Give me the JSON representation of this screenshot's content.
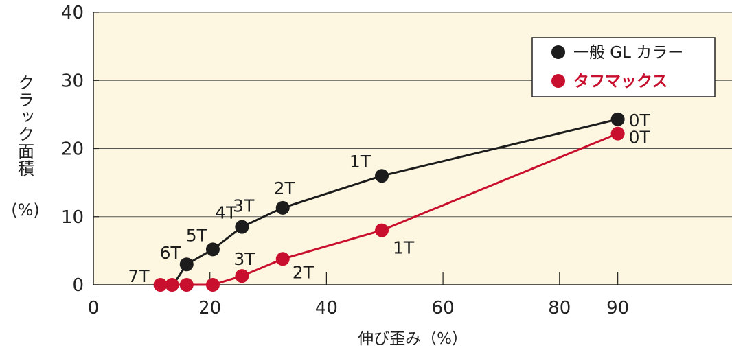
{
  "chart_data": {
    "type": "line",
    "xlabel": "伸び歪み（%）",
    "ylabel": "クラック面積",
    "ylabel_unit": "(%)",
    "xlim": [
      0,
      95
    ],
    "ylim": [
      0,
      40
    ],
    "xticks": [
      0,
      20,
      40,
      60,
      80,
      90
    ],
    "yticks": [
      0,
      10,
      20,
      30,
      40
    ],
    "grid": "horizontal",
    "plot_background": "#fdf7e1",
    "legend_position": "top-right",
    "series": [
      {
        "name": "一般 GL カラー",
        "color": "#1c1c1c",
        "points": [
          {
            "x": 13.7,
            "y": 0,
            "label": ""
          },
          {
            "x": 16.0,
            "y": 3.0,
            "label": "6T"
          },
          {
            "x": 20.5,
            "y": 5.2,
            "label": "5T"
          },
          {
            "x": 25.5,
            "y": 8.5,
            "label": "4T"
          },
          {
            "x": 32.5,
            "y": 11.3,
            "label": "3T"
          },
          {
            "x": 49.5,
            "y": 16.0,
            "label": "2T"
          },
          {
            "x": 90.0,
            "y": 24.3,
            "label": "1T"
          }
        ],
        "end_label": "0T"
      },
      {
        "name": "タフマックス",
        "color": "#c8102e",
        "points": [
          {
            "x": 11.5,
            "y": 0,
            "label": "7T"
          },
          {
            "x": 13.5,
            "y": 0,
            "label": ""
          },
          {
            "x": 16.0,
            "y": 0,
            "label": ""
          },
          {
            "x": 20.5,
            "y": 0,
            "label": ""
          },
          {
            "x": 25.5,
            "y": 1.3,
            "label": "3T"
          },
          {
            "x": 32.5,
            "y": 3.8,
            "label": "2T"
          },
          {
            "x": 49.5,
            "y": 8.0,
            "label": "1T"
          },
          {
            "x": 90.0,
            "y": 22.2,
            "label": "0T"
          }
        ]
      }
    ],
    "point_labels": [
      {
        "text": "7T",
        "color": "#1c1c1c"
      },
      {
        "text": "6T",
        "color": "#1c1c1c"
      },
      {
        "text": "5T",
        "color": "#1c1c1c"
      },
      {
        "text": "4T",
        "color": "#1c1c1c"
      },
      {
        "text": "3T",
        "color": "#1c1c1c"
      },
      {
        "text": "2T",
        "color": "#1c1c1c"
      },
      {
        "text": "1T",
        "color": "#1c1c1c"
      },
      {
        "text": "0T",
        "color": "#1c1c1c"
      },
      {
        "text": "0T",
        "color": "#1c1c1c"
      },
      {
        "text": "3T",
        "color": "#1c1c1c"
      },
      {
        "text": "2T",
        "color": "#1c1c1c"
      },
      {
        "text": "1T",
        "color": "#1c1c1c"
      }
    ]
  }
}
